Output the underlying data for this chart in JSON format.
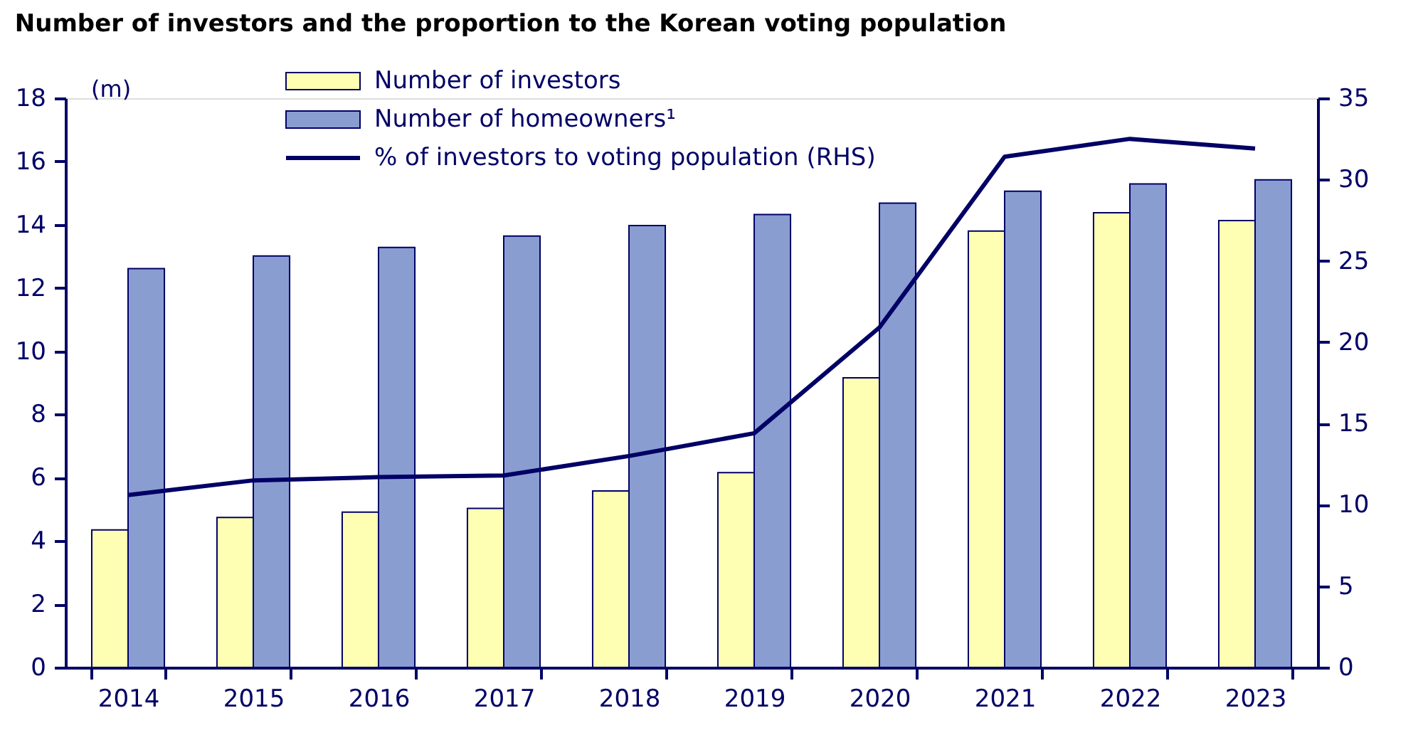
{
  "chart_data": {
    "type": "bar",
    "title": "Number of investors and the proportion to the Korean voting population",
    "categories": [
      "2014",
      "2015",
      "2016",
      "2017",
      "2018",
      "2019",
      "2020",
      "2021",
      "2022",
      "2023"
    ],
    "series": [
      {
        "name": "Number of investors",
        "color": "#ffffb3",
        "values": [
          4.35,
          4.74,
          4.91,
          5.03,
          5.58,
          6.16,
          9.16,
          13.8,
          14.38,
          14.13
        ]
      },
      {
        "name": "Number of homeowners¹",
        "color": "#8a9dd1",
        "values": [
          12.61,
          13.01,
          13.28,
          13.64,
          13.97,
          14.32,
          14.68,
          15.06,
          15.29,
          15.42
        ]
      },
      {
        "name": "% of investors to voting population (RHS)",
        "type": "line",
        "axis": "y2",
        "color": "#000066",
        "values": [
          10.6,
          11.5,
          11.7,
          11.8,
          13.0,
          14.4,
          20.9,
          31.4,
          32.5,
          31.9
        ]
      }
    ],
    "ylim": [
      0,
      18
    ],
    "yticks": [
      0,
      2,
      4,
      6,
      8,
      10,
      12,
      14,
      16,
      18
    ],
    "y2lim": [
      0,
      35
    ],
    "y2ticks": [
      0,
      5,
      10,
      15,
      20,
      25,
      30,
      35
    ],
    "annotations": [
      "(m)"
    ],
    "grid": false,
    "legend": "top"
  }
}
